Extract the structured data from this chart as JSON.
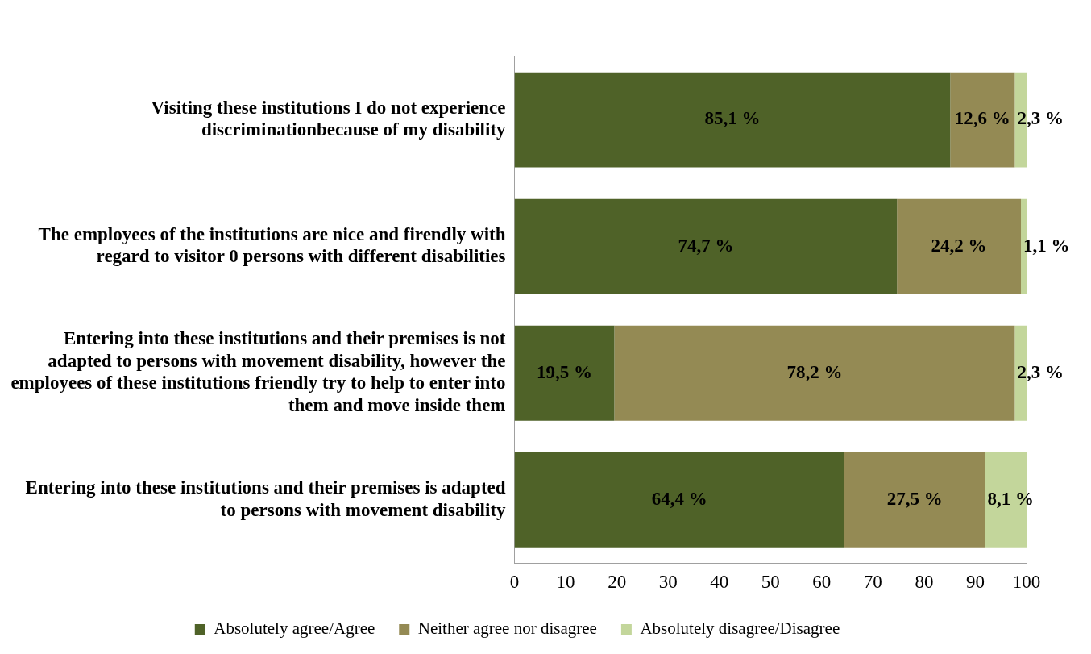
{
  "chart_data": {
    "type": "bar",
    "orientation": "horizontal",
    "stacked": true,
    "categories": [
      "Visiting these institutions I do not experience discriminationbecause of my disability",
      "The employees of the institutions are nice and firendly with regard to visitor 0 persons with different disabilities",
      "Entering into these institutions and their premises is not adapted to persons with movement disability, however the employees of these institutions friendly try to  help to enter into them and move inside them",
      "Entering into these institutions and their premises is adapted to persons with movement disability"
    ],
    "series": [
      {
        "name": "Absolutely agree/Agree",
        "color": "#4f6228",
        "values": [
          85.1,
          74.7,
          19.5,
          64.4
        ],
        "value_labels": [
          "85,1 %",
          "74,7 %",
          "19,5 %",
          "64,4 %"
        ]
      },
      {
        "name": "Neither agree nor disagree",
        "color": "#948a54",
        "values": [
          12.6,
          24.2,
          78.2,
          27.5
        ],
        "value_labels": [
          "12,6 %",
          "24,2 %",
          "78,2 %",
          "27,5 %"
        ]
      },
      {
        "name": "Absolutely disagree/Disagree",
        "color": "#c3d69b",
        "values": [
          2.3,
          1.1,
          2.3,
          8.1
        ],
        "value_labels": [
          "2,3 %",
          "1,1 %",
          "2,3 %",
          "8,1 %"
        ]
      }
    ],
    "xlim": [
      0,
      100
    ],
    "xticks": [
      0,
      10,
      20,
      30,
      40,
      50,
      60,
      70,
      80,
      90,
      100
    ],
    "grid": false,
    "legend": "bottom"
  }
}
